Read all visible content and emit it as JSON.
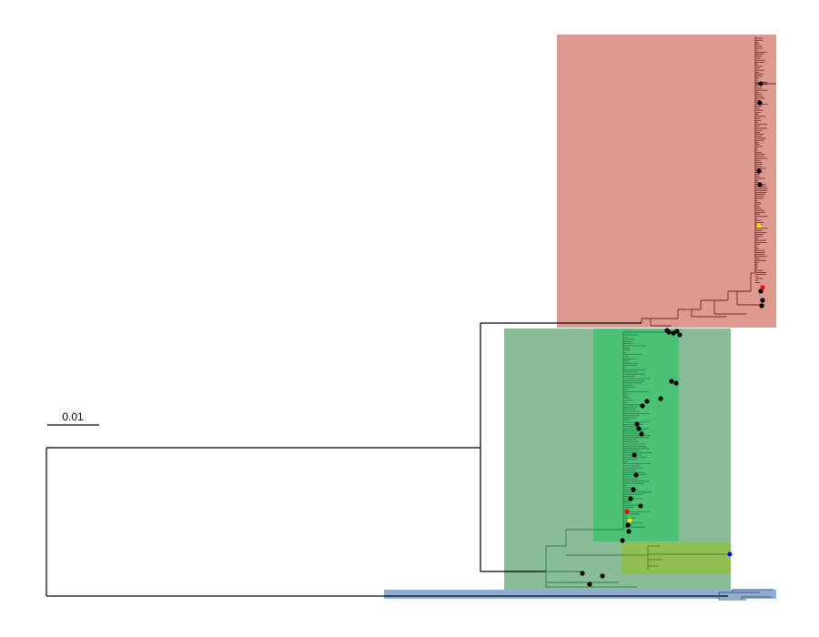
{
  "scale_bar": {
    "label": "0.01"
  },
  "colors": {
    "clade_red_bg": "#dc9a91",
    "clade_red_branch": "#6b2a1e",
    "clade_green_bg": "#89bd98",
    "clade_green_inner_bg": "#4bc275",
    "clade_green_branch": "#2d7a47",
    "clade_lightgreen_bg": "#8fbf52",
    "clade_lightgreen_branch": "#5f7a2a",
    "clade_blue_bg": "#8eadd1",
    "clade_blue_branch": "#3e5a7a",
    "backbone": "#000000",
    "tip_black": "#000000",
    "tip_red": "#ff0000",
    "tip_yellow": "#ffe600",
    "tip_blue": "#0000ff"
  },
  "clades": [
    {
      "id": "red",
      "highlight": "clade_red_bg"
    },
    {
      "id": "green-outer",
      "highlight": "clade_green_bg"
    },
    {
      "id": "green-inner",
      "highlight": "clade_green_inner_bg"
    },
    {
      "id": "lightgreen",
      "highlight": "clade_lightgreen_bg"
    },
    {
      "id": "blue",
      "highlight": "clade_blue_bg"
    }
  ],
  "highlighted_tips": [
    {
      "color": "tip_red",
      "clade": "red"
    },
    {
      "color": "tip_yellow",
      "clade": "red"
    },
    {
      "color": "tip_red",
      "clade": "green-inner"
    },
    {
      "color": "tip_yellow",
      "clade": "green-inner"
    },
    {
      "color": "tip_blue",
      "clade": "lightgreen"
    }
  ]
}
